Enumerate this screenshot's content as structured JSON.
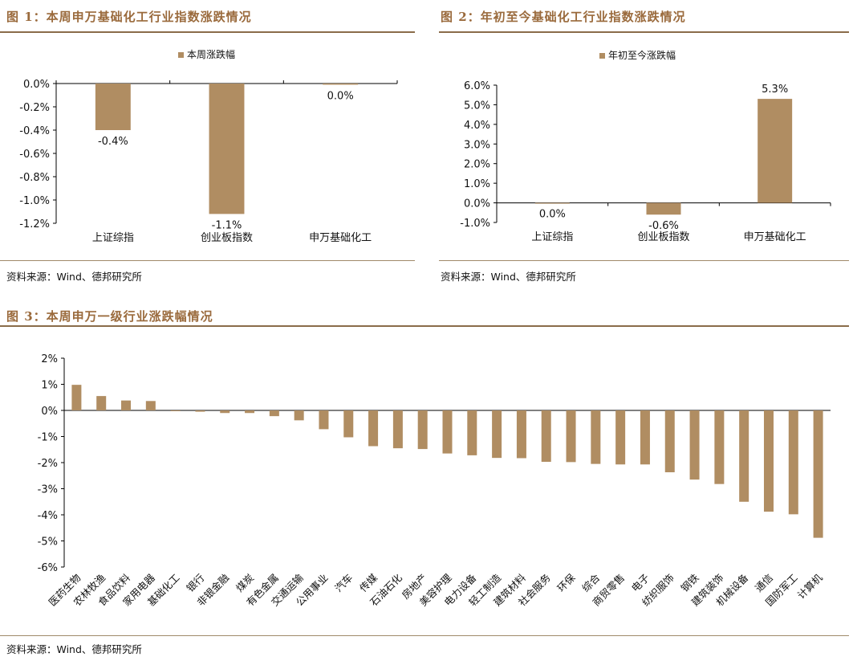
{
  "colors": {
    "bar": "#b08d62",
    "title": "#9a6a3c",
    "rule": "#8a6c4a"
  },
  "figures": {
    "fig1": {
      "title": "图 1：本周申万基础化工行业指数涨跌情况",
      "source": "资料来源：Wind、德邦研究所"
    },
    "fig2": {
      "title": "图 2：年初至今基础化工行业指数涨跌情况",
      "source": "资料来源：Wind、德邦研究所"
    },
    "fig3": {
      "title": "图 3：本周申万一级行业涨跌幅情况",
      "source": "资料来源：Wind、德邦研究所"
    }
  },
  "chart_data": [
    {
      "id": "chart1",
      "type": "bar",
      "legend": "本周涨跌幅",
      "categories": [
        "上证综指",
        "创业板指数",
        "申万基础化工"
      ],
      "values": [
        -0.4,
        -1.12,
        -0.01
      ],
      "data_labels": [
        "-0.4%",
        "-1.1%",
        "0.0%"
      ],
      "ylim": [
        -1.2,
        0.0
      ],
      "yticks": [
        0.0,
        -0.2,
        -0.4,
        -0.6,
        -0.8,
        -1.0,
        -1.2
      ],
      "ytick_labels": [
        "0.0%",
        "-0.2%",
        "-0.4%",
        "-0.6%",
        "-0.8%",
        "-1.0%",
        "-1.2%"
      ]
    },
    {
      "id": "chart2",
      "type": "bar",
      "legend": "年初至今涨跌幅",
      "categories": [
        "上证综指",
        "创业板指数",
        "申万基础化工"
      ],
      "values": [
        0.0,
        -0.6,
        5.3
      ],
      "data_labels": [
        "0.0%",
        "-0.6%",
        "5.3%"
      ],
      "ylim": [
        -1.0,
        6.0
      ],
      "yticks": [
        6.0,
        5.0,
        4.0,
        3.0,
        2.0,
        1.0,
        0.0,
        -1.0
      ],
      "ytick_labels": [
        "6.0%",
        "5.0%",
        "4.0%",
        "3.0%",
        "2.0%",
        "1.0%",
        "0.0%",
        "-1.0%"
      ]
    },
    {
      "id": "chart3",
      "type": "bar",
      "categories": [
        "医药生物",
        "农林牧渔",
        "食品饮料",
        "家用电器",
        "基础化工",
        "银行",
        "非银金融",
        "煤炭",
        "有色金属",
        "交通运输",
        "公用事业",
        "汽车",
        "传媒",
        "石油石化",
        "房地产",
        "美容护理",
        "电力设备",
        "轻工制造",
        "建筑材料",
        "社会服务",
        "环保",
        "综合",
        "商贸零售",
        "电子",
        "纺织服饰",
        "钢铁",
        "建筑装饰",
        "机械设备",
        "通信",
        "国防军工",
        "计算机"
      ],
      "values": [
        0.98,
        0.55,
        0.38,
        0.36,
        -0.01,
        -0.05,
        -0.1,
        -0.1,
        -0.22,
        -0.38,
        -0.72,
        -1.03,
        -1.37,
        -1.45,
        -1.48,
        -1.65,
        -1.72,
        -1.82,
        -1.83,
        -1.97,
        -1.98,
        -2.05,
        -2.07,
        -2.07,
        -2.37,
        -2.65,
        -2.82,
        -3.5,
        -3.88,
        -3.98,
        -4.88
      ],
      "ylim": [
        -6,
        2
      ],
      "yticks": [
        2,
        1,
        0,
        -1,
        -2,
        -3,
        -4,
        -5,
        -6
      ],
      "ytick_labels": [
        "2%",
        "1%",
        "0%",
        "-1%",
        "-2%",
        "-3%",
        "-4%",
        "-5%",
        "-6%"
      ]
    }
  ]
}
